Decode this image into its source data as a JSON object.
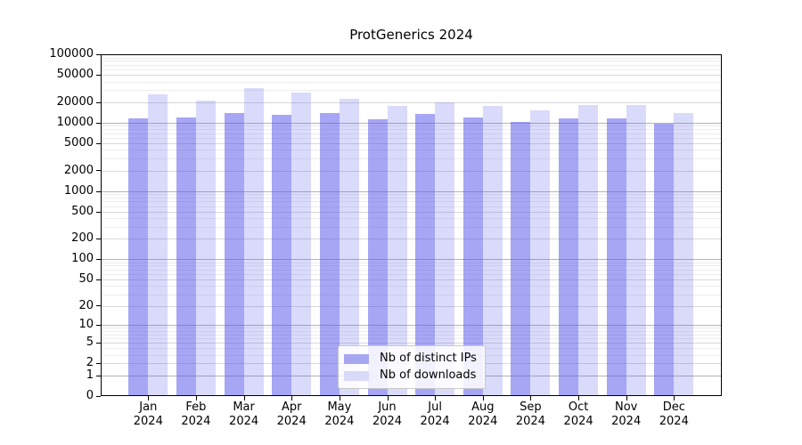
{
  "title": "ProtGenerics 2024",
  "chart_data": {
    "type": "bar",
    "title": "ProtGenerics 2024",
    "scale": "log1p",
    "ylim": [
      0,
      100000
    ],
    "grid": true,
    "legend_position": "lower center",
    "y_ticks": [
      0,
      1,
      2,
      5,
      10,
      20,
      50,
      100,
      200,
      500,
      1000,
      2000,
      5000,
      10000,
      20000,
      50000,
      100000
    ],
    "categories": [
      "Jan",
      "Feb",
      "Mar",
      "Apr",
      "May",
      "Jun",
      "Jul",
      "Aug",
      "Sep",
      "Oct",
      "Nov",
      "Dec"
    ],
    "x_sublabel": "2024",
    "series": [
      {
        "name": "Nb of distinct IPs",
        "color": "rgba(85,85,235,0.52)",
        "swatch": "#a7a7f1",
        "values": [
          11400,
          11900,
          13800,
          13100,
          13900,
          11100,
          13500,
          11900,
          10300,
          11600,
          11600,
          9800
        ]
      },
      {
        "name": "Nb of downloads",
        "color": "rgba(85,85,235,0.22)",
        "swatch": "#d9d9fa",
        "values": [
          25600,
          20800,
          31900,
          27200,
          22300,
          17800,
          20100,
          17600,
          15100,
          18100,
          18000,
          13900
        ]
      }
    ],
    "colors": {
      "grid_major": "#b4b4b4",
      "grid_labeled": "#d9d9d9",
      "grid_minor": "#ededed",
      "axis": "#000000"
    }
  }
}
